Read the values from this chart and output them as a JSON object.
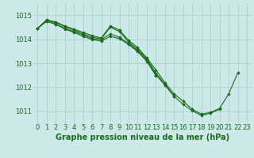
{
  "background_color": "#cce8e8",
  "grid_color": "#aacccc",
  "line_color": "#1a6b1a",
  "marker_color": "#1a6b1a",
  "xlabel": "Graphe pression niveau de la mer (hPa)",
  "xlabel_fontsize": 7.0,
  "tick_fontsize": 6.0,
  "ylim": [
    1010.5,
    1015.5
  ],
  "yticks": [
    1011,
    1012,
    1013,
    1014,
    1015
  ],
  "xlim": [
    -0.5,
    23.5
  ],
  "xticks": [
    0,
    1,
    2,
    3,
    4,
    5,
    6,
    7,
    8,
    9,
    10,
    11,
    12,
    13,
    14,
    15,
    16,
    17,
    18,
    19,
    20,
    21,
    22,
    23
  ],
  "series": [
    [
      1014.45,
      1014.8,
      1014.72,
      1014.55,
      1014.42,
      1014.28,
      1014.15,
      1014.05,
      1014.55,
      1014.38,
      1013.95,
      1013.65,
      1013.22,
      1012.72,
      1012.18,
      1011.72,
      1011.42,
      1011.08,
      1010.88,
      1010.95,
      1011.12,
      1011.72,
      1012.6,
      null
    ],
    [
      1014.45,
      1014.8,
      1014.68,
      1014.52,
      1014.38,
      1014.22,
      1014.08,
      1014.02,
      1014.5,
      1014.32,
      1013.88,
      1013.58,
      1013.18,
      1012.58,
      1012.12,
      1011.62,
      1011.28,
      1011.02,
      1010.82,
      1010.92,
      1011.08,
      null,
      null,
      null
    ],
    [
      1014.45,
      1014.75,
      1014.62,
      1014.45,
      1014.32,
      1014.18,
      1014.02,
      1013.98,
      1014.22,
      1014.08,
      1013.82,
      1013.52,
      1013.12,
      1012.52,
      1012.08,
      1011.62,
      null,
      null,
      null,
      null,
      null,
      null,
      null,
      null
    ],
    [
      1014.45,
      1014.75,
      1014.62,
      1014.42,
      1014.28,
      1014.12,
      1013.98,
      1013.92,
      1014.12,
      1014.02,
      1013.78,
      1013.48,
      1013.08,
      1012.48,
      null,
      null,
      null,
      null,
      null,
      null,
      null,
      null,
      null,
      null
    ]
  ]
}
